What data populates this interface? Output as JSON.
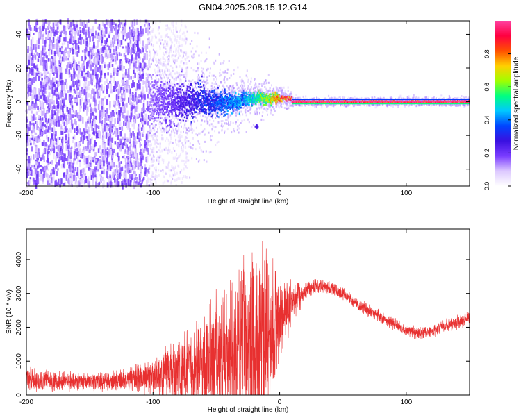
{
  "title": "GN04.2025.208.15.12.G14",
  "colors": {
    "snr_line": "#e83030",
    "frame": "#000000",
    "colormap_stops": [
      "#ffffff",
      "#dcc8ff",
      "#7a3cff",
      "#3a10e0",
      "#0044ff",
      "#00c8ff",
      "#00ff80",
      "#a0ff00",
      "#ffd000",
      "#ff5000",
      "#ff0040",
      "#ff40a0"
    ]
  },
  "chart_data": [
    {
      "type": "heatmap",
      "xlabel": "Height of straight line (km)",
      "ylabel": "Frequency (Hz)",
      "xlim": [
        -200,
        150
      ],
      "ylim": [
        -50,
        48
      ],
      "xticks": [
        -200,
        -100,
        0,
        100
      ],
      "xtick_labels": [
        "-200",
        "-100",
        "0",
        "100"
      ],
      "yticks": [
        -40,
        -20,
        0,
        20,
        40
      ],
      "ytick_labels": [
        "-40",
        "-20",
        "0",
        "20",
        "40"
      ],
      "colorbar": {
        "label": "Normalized spectral amplitude",
        "range": [
          0,
          1
        ],
        "ticks": [
          0.0,
          0.2,
          0.4,
          0.6,
          0.8
        ],
        "tick_labels": [
          "0.0",
          "0.2",
          "0.4",
          "0.6",
          "0.8"
        ]
      },
      "regions": [
        {
          "x": [
            -200,
            -103
          ],
          "freq": [
            -50,
            48
          ],
          "amplitude": [
            0.05,
            0.22
          ],
          "pattern": "scattered noise"
        },
        {
          "x": [
            -103,
            -30
          ],
          "freq_center": 0,
          "freq_halfwidth": [
            12,
            3
          ],
          "amplitude": [
            0.15,
            0.45
          ]
        },
        {
          "x": [
            -30,
            10
          ],
          "freq_center": 2,
          "freq_halfwidth": [
            3,
            1
          ],
          "amplitude": [
            0.4,
            0.95
          ]
        },
        {
          "x": [
            10,
            150
          ],
          "freq_center": 0,
          "freq_halfwidth": 0.5,
          "amplitude": 1.0
        }
      ],
      "features": [
        {
          "x": -18,
          "freq": -14,
          "amplitude": 0.25
        }
      ]
    },
    {
      "type": "line",
      "xlabel": "Height of straight line (km)",
      "ylabel": "SNR (10 * v/v)",
      "xlim": [
        -200,
        150
      ],
      "ylim": [
        0,
        4900
      ],
      "xticks": [
        -200,
        -100,
        0,
        100
      ],
      "xtick_labels": [
        "-200",
        "-100",
        "0",
        "100"
      ],
      "yticks": [
        0,
        1000,
        2000,
        3000,
        4000
      ],
      "ytick_labels": [
        "0",
        "1000",
        "2000",
        "3000",
        "4000"
      ],
      "series": [
        {
          "envelope_x": [
            -200,
            -180,
            -160,
            -140,
            -120,
            -100,
            -90,
            -80,
            -70,
            -60,
            -50,
            -40,
            -35,
            -30,
            -25,
            -20,
            -15,
            -10,
            -5,
            0,
            5,
            10,
            15,
            20,
            25,
            30,
            40,
            50,
            60,
            80,
            100,
            110,
            120,
            140,
            150
          ],
          "mean": [
            450,
            420,
            380,
            380,
            450,
            550,
            650,
            750,
            850,
            1000,
            1100,
            1150,
            1200,
            1300,
            1400,
            1500,
            1550,
            1700,
            1900,
            2200,
            2500,
            2750,
            2900,
            3050,
            3150,
            3250,
            3150,
            3000,
            2700,
            2300,
            1900,
            1850,
            1900,
            2150,
            2300
          ],
          "amplitude": [
            450,
            350,
            300,
            300,
            400,
            700,
            900,
            1200,
            1400,
            1800,
            2200,
            2400,
            2700,
            3000,
            3200,
            3400,
            3500,
            3200,
            2500,
            1700,
            1100,
            700,
            500,
            300,
            280,
            250,
            230,
            230,
            220,
            220,
            220,
            220,
            220,
            250,
            260
          ]
        }
      ]
    }
  ]
}
